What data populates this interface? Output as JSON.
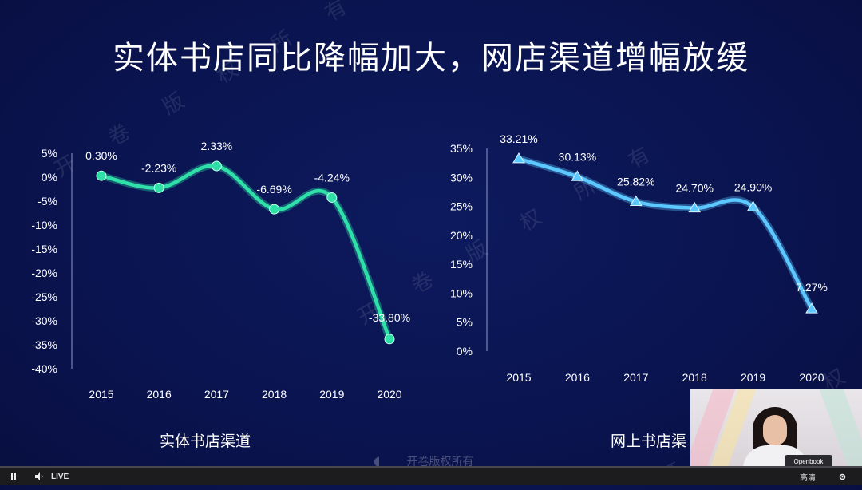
{
  "slide": {
    "title": "实体书店同比降幅加大，网店渠道增幅放缓",
    "watermark_text": "开 卷 版 权 所 有",
    "footer_logo_text": "开卷版权所有"
  },
  "chart_data": [
    {
      "type": "line",
      "title": "实体书店渠道",
      "categories": [
        "2015",
        "2016",
        "2017",
        "2018",
        "2019",
        "2020"
      ],
      "values": [
        0.3,
        -2.23,
        2.33,
        -6.69,
        -4.24,
        -33.8
      ],
      "data_labels": [
        "0.30%",
        "-2.23%",
        "2.33%",
        "-6.69%",
        "-4.24%",
        "-33.80%"
      ],
      "ylim": [
        -40,
        5
      ],
      "y_ticks": [
        "5%",
        "0%",
        "-5%",
        "-10%",
        "-15%",
        "-20%",
        "-25%",
        "-30%",
        "-35%",
        "-40%"
      ],
      "color": "#2fe0a8",
      "marker": "circle",
      "grid": false
    },
    {
      "type": "line",
      "title": "网上书店渠",
      "categories": [
        "2015",
        "2016",
        "2017",
        "2018",
        "2019",
        "2020"
      ],
      "values": [
        33.21,
        30.13,
        25.82,
        24.7,
        24.9,
        7.27
      ],
      "data_labels": [
        "33.21%",
        "30.13%",
        "25.82%",
        "24.70%",
        "24.90%",
        "7.27%"
      ],
      "ylim": [
        0,
        35
      ],
      "y_ticks": [
        "35%",
        "30%",
        "25%",
        "20%",
        "15%",
        "10%",
        "5%",
        "0%"
      ],
      "color": "#5cc8ff",
      "marker": "triangle",
      "grid": false
    }
  ],
  "video": {
    "laptop_label": "Openbook"
  },
  "controls": {
    "live_label": "LIVE",
    "quality_label": "高清",
    "play_icon": "pause-icon",
    "volume_icon": "volume-icon",
    "settings_icon": "settings-icon"
  }
}
